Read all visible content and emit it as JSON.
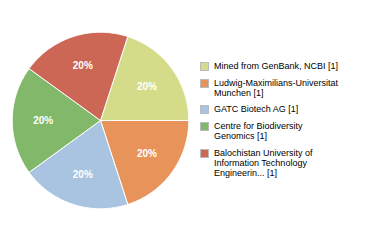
{
  "chart_data": {
    "type": "pie",
    "categories": [
      "Mined from GenBank, NCBI [1]",
      "Ludwig-Maximilians-Universitat\nMunchen [1]",
      "GATC Biotech AG [1]",
      "Centre for Biodiversity\nGenomics [1]",
      "Balochistan University of\nInformation Technology\nEngineerin... [1]"
    ],
    "values": [
      20,
      20,
      20,
      20,
      20
    ],
    "value_labels": [
      "20%",
      "20%",
      "20%",
      "20%",
      "20%"
    ],
    "colors": [
      "#d4dc8a",
      "#e8935a",
      "#a8c4e0",
      "#82b86a",
      "#cc6655"
    ],
    "data_labels": true,
    "legend": "right"
  }
}
